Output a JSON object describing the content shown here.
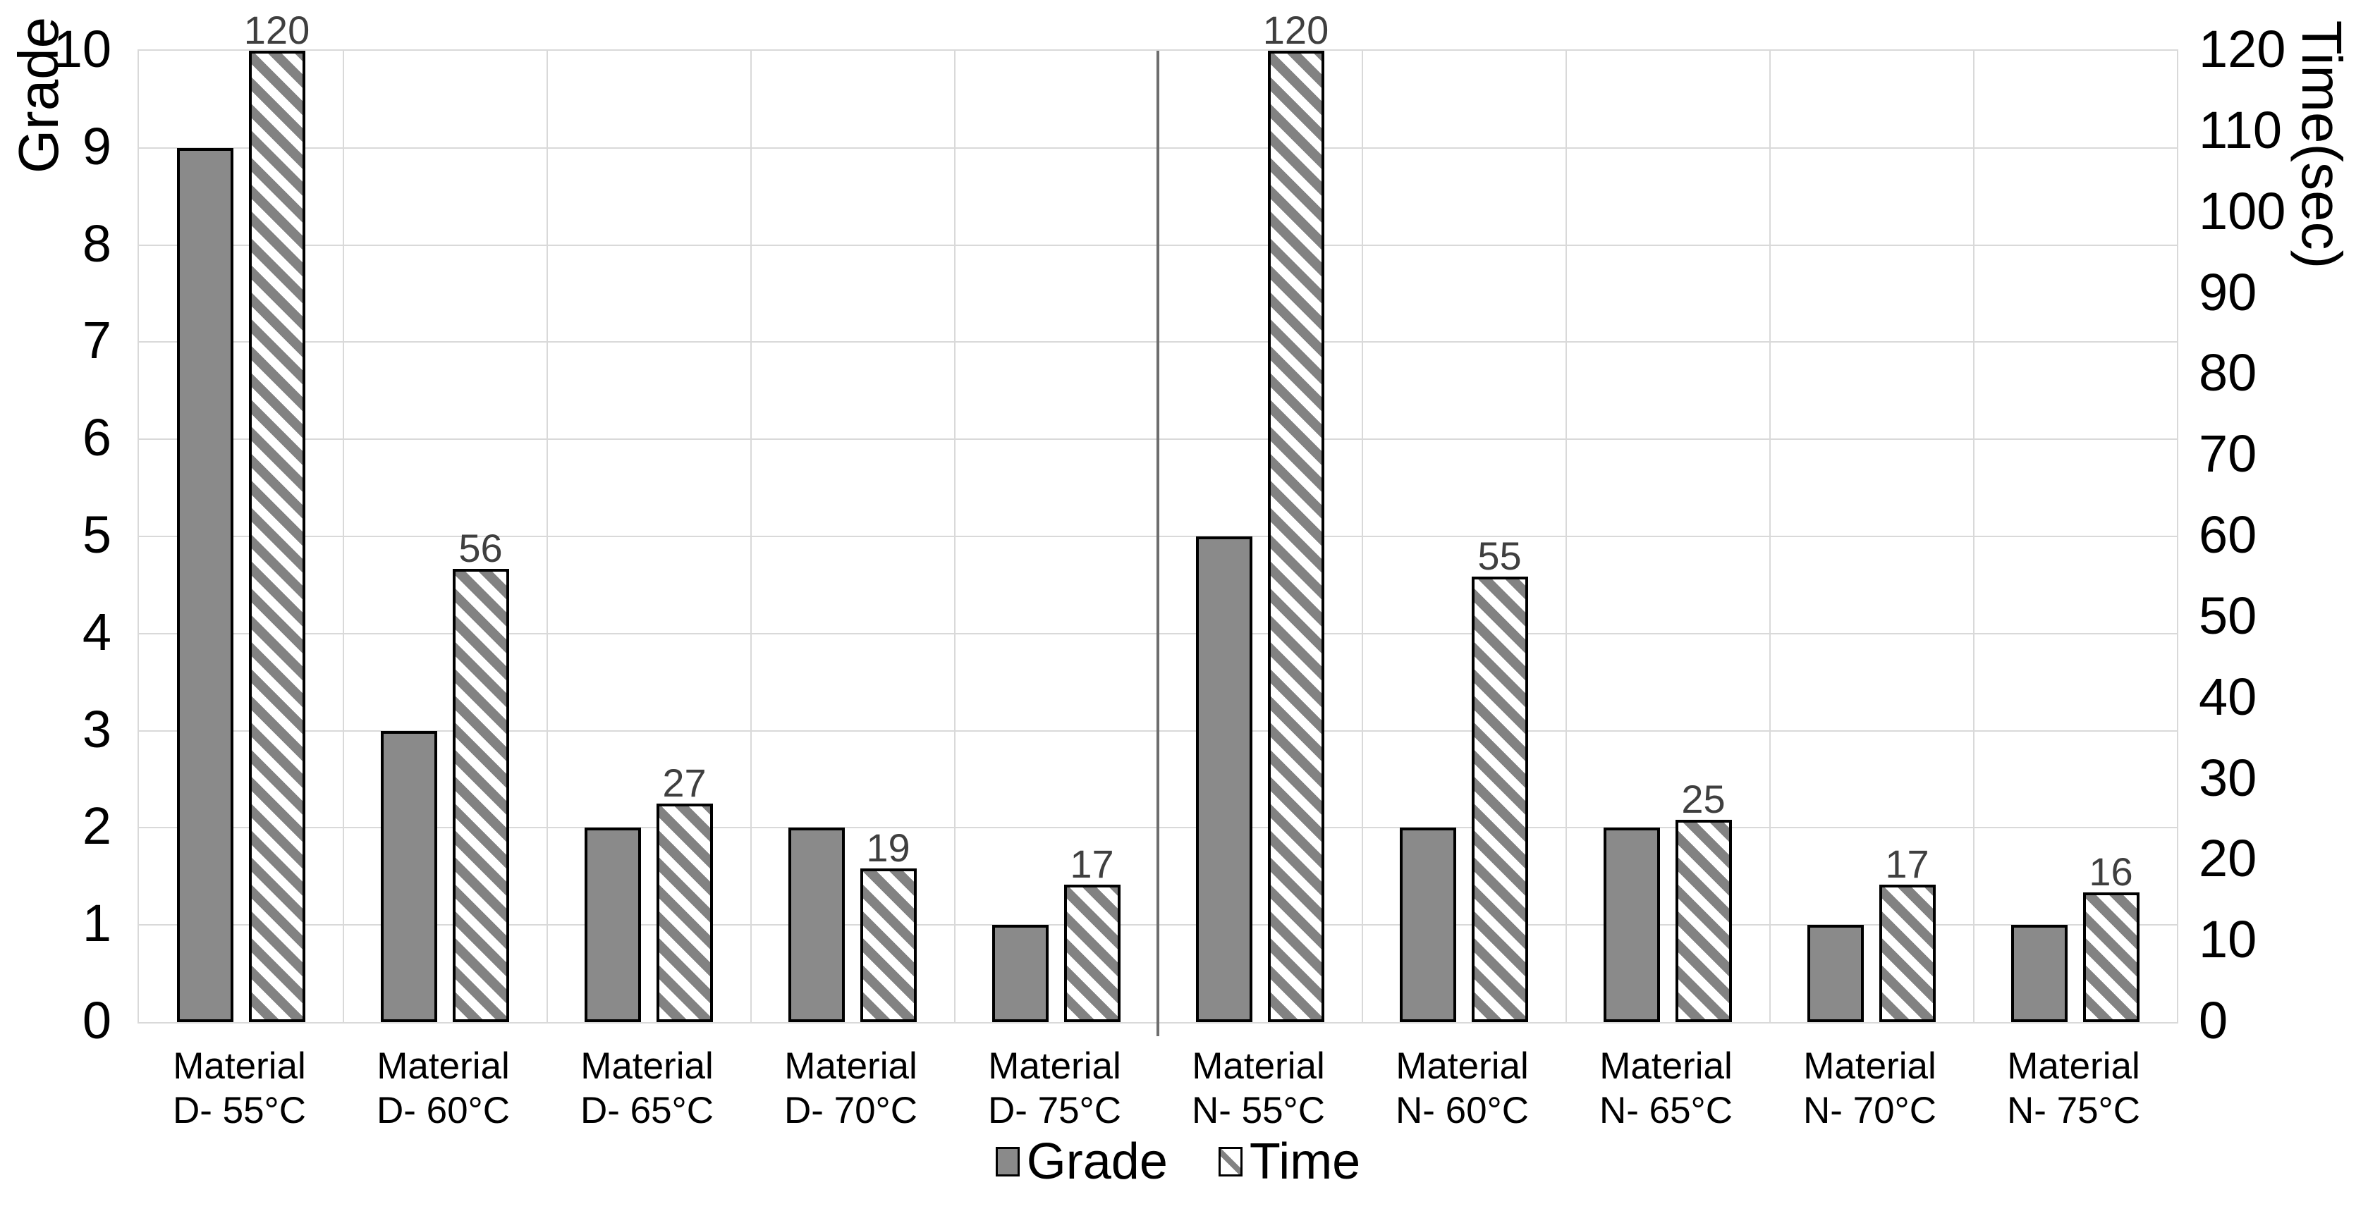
{
  "chart_data": {
    "type": "bar",
    "categories": [
      {
        "top": "Material",
        "bottom": "D- 55°C"
      },
      {
        "top": "Material",
        "bottom": "D- 60°C"
      },
      {
        "top": "Material",
        "bottom": "D- 65°C"
      },
      {
        "top": "Material",
        "bottom": "D- 70°C"
      },
      {
        "top": "Material",
        "bottom": "D- 75°C"
      },
      {
        "top": "Material",
        "bottom": "N- 55°C"
      },
      {
        "top": "Material",
        "bottom": "N- 60°C"
      },
      {
        "top": "Material",
        "bottom": "N- 65°C"
      },
      {
        "top": "Material",
        "bottom": "N- 70°C"
      },
      {
        "top": "Material",
        "bottom": "N- 75°C"
      }
    ],
    "series": [
      {
        "name": "Grade",
        "axis": "left",
        "style": "solid",
        "values": [
          9,
          3,
          2,
          2,
          1,
          5,
          2,
          2,
          1,
          1
        ],
        "data_labels": false
      },
      {
        "name": "Time",
        "axis": "right",
        "style": "hatch",
        "values": [
          120,
          56,
          27,
          19,
          17,
          120,
          55,
          25,
          17,
          16
        ],
        "data_labels": true
      }
    ],
    "left_axis": {
      "title": "Grade",
      "min": 0,
      "max": 10,
      "ticks": [
        10,
        9,
        8,
        7,
        6,
        5,
        4,
        3,
        2,
        1,
        0
      ]
    },
    "right_axis": {
      "title": "Time(sec)",
      "min": 0,
      "max": 120,
      "ticks": [
        120,
        110,
        100,
        90,
        80,
        70,
        60,
        50,
        40,
        30,
        20,
        10,
        0
      ]
    },
    "legend": [
      {
        "label": "Grade",
        "style": "solid"
      },
      {
        "label": "Time",
        "style": "hatch"
      }
    ],
    "divider_after_category": 5,
    "grid": true,
    "legend_position": "bottom"
  },
  "colors": {
    "solid_fill": "#8a8a8a",
    "hatch_stripe": "#828282",
    "hatch_background": "#ffffff",
    "bar_border": "#000000",
    "gridline": "#d9d9d9",
    "divider": "#6e6e6e",
    "data_label": "#3f3f3f",
    "tick_label": "#000000"
  }
}
